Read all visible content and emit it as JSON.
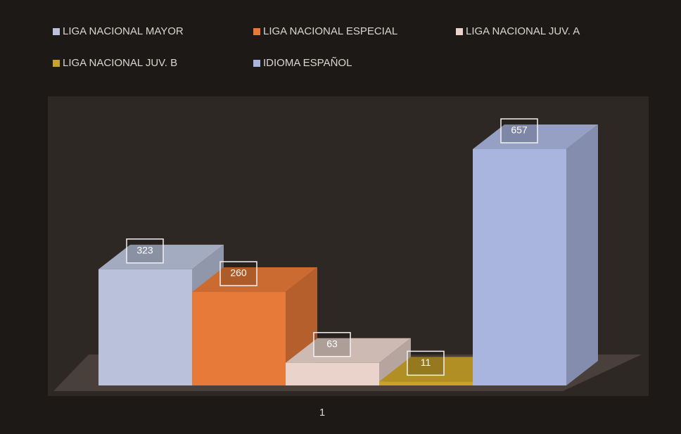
{
  "chart_data": {
    "type": "bar3d",
    "categories": [
      "1"
    ],
    "series": [
      {
        "name": "LIGA NACIONAL  MAYOR",
        "color": "#b9c2da",
        "values": [
          323
        ]
      },
      {
        "name": "LIGA NACIONAL  ESPECIAL",
        "color": "#e77a38",
        "values": [
          260
        ]
      },
      {
        "name": "LIGA NACIONAL  JUV. A",
        "color": "#e9d3cb",
        "values": [
          63
        ]
      },
      {
        "name": "LIGA NACIONAL  JUV. B",
        "color": "#c9a22a",
        "values": [
          11
        ]
      },
      {
        "name": "IDIOMA  ESPAÑOL",
        "color": "#aab5df",
        "values": [
          657
        ]
      }
    ]
  }
}
